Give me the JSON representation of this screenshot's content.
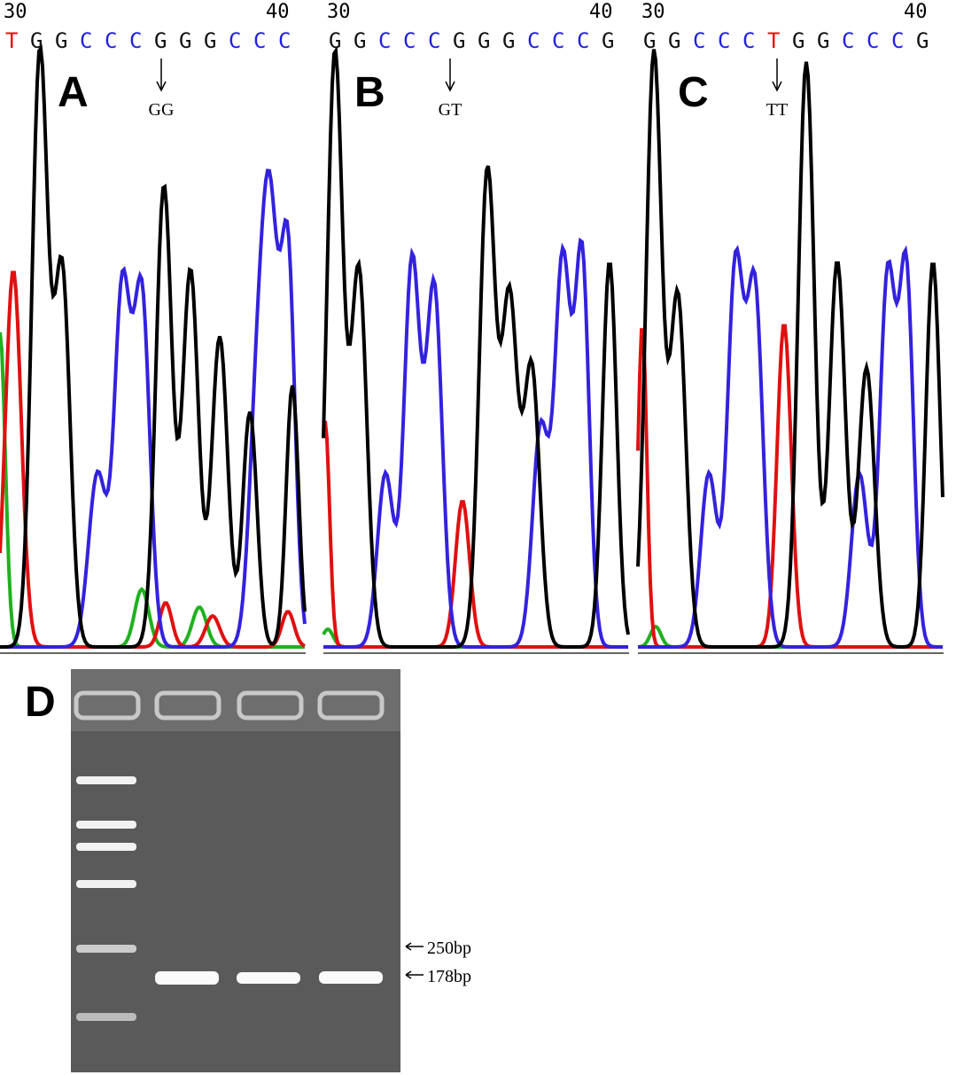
{
  "panels": [
    {
      "label": "A",
      "positions": [
        "30",
        "40"
      ],
      "bases": [
        "T",
        "G",
        "G",
        "C",
        "C",
        "C",
        "G",
        "G",
        "G",
        "C",
        "C",
        "C"
      ],
      "genotype": "GG"
    },
    {
      "label": "B",
      "positions": [
        "30",
        "40"
      ],
      "bases": [
        "G",
        "G",
        "C",
        "C",
        "C",
        "G",
        "G",
        "G",
        "C",
        "C",
        "C",
        "G"
      ],
      "genotype": "GT"
    },
    {
      "label": "C",
      "positions": [
        "30",
        "40"
      ],
      "bases": [
        "G",
        "G",
        "C",
        "C",
        "C",
        "T",
        "G",
        "G",
        "C",
        "C",
        "C",
        "G"
      ],
      "genotype": "TT"
    }
  ],
  "gel": {
    "label": "D",
    "markers": [
      "250bp",
      "178bp"
    ]
  }
}
